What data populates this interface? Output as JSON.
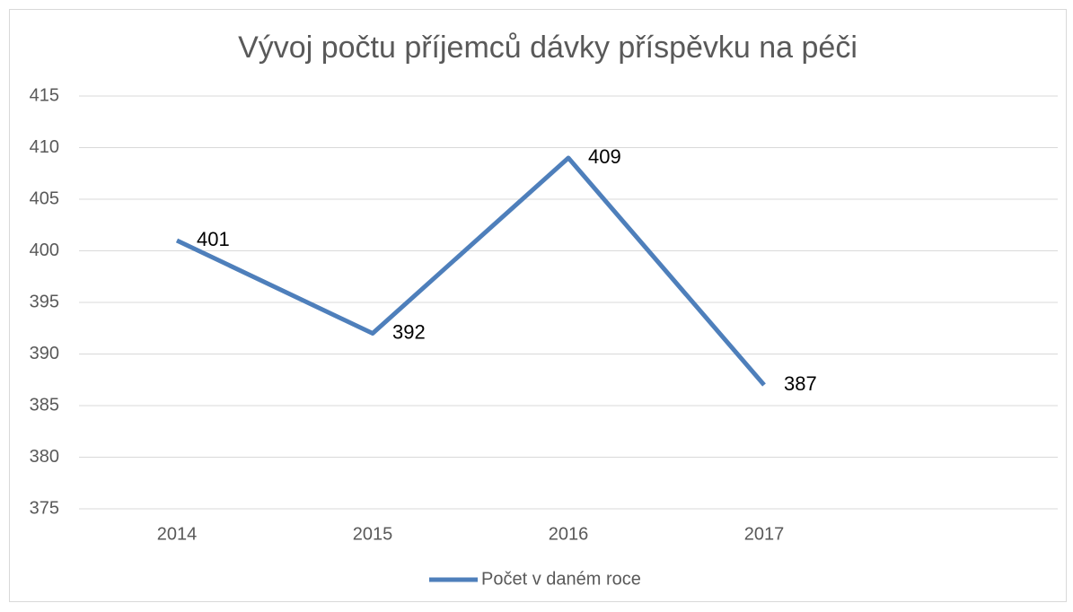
{
  "chart_data": {
    "type": "line",
    "title": "Vývoj počtu příjemců dávky příspěvku na péči",
    "categories": [
      "2014",
      "2015",
      "2016",
      "2017",
      null
    ],
    "series": [
      {
        "name": "Počet v daném roce",
        "color": "#4e7fbb",
        "values": [
          401,
          392,
          409,
          387,
          null
        ]
      }
    ],
    "ylim": [
      375,
      415
    ],
    "yticks": [
      375,
      380,
      385,
      390,
      395,
      400,
      405,
      410,
      415
    ],
    "grid": true,
    "legend": "bottom",
    "data_labels": true
  }
}
